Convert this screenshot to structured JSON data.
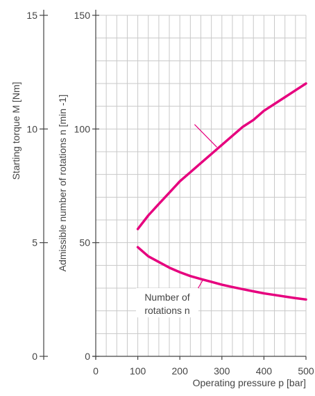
{
  "chart_data": {
    "type": "line",
    "title": "",
    "xlabel": "Operating pressure p [bar]",
    "ylabel": "Admissible number of rotations n [min -1]",
    "y2label": "Starting torque M [Nm]",
    "xlim": [
      0,
      500
    ],
    "ylim": [
      0,
      150
    ],
    "y2lim": [
      0,
      15
    ],
    "x_ticks": [
      "0",
      "100",
      "200",
      "300",
      "400",
      "500"
    ],
    "y_ticks": [
      "0",
      "50",
      "100",
      "150"
    ],
    "y2_ticks": [
      "0",
      "5",
      "10",
      "15"
    ],
    "grid": true,
    "annotations": [
      {
        "lines": [
          "Number of",
          "rotations n"
        ]
      }
    ],
    "colors": {
      "series": "#e6007e",
      "grid": "#c8c8c8",
      "axis": "#444444"
    },
    "series": [
      {
        "x": [
          100,
          125,
          150,
          175,
          200,
          225,
          250,
          275,
          300,
          325,
          350,
          375,
          400,
          425,
          450,
          475,
          500
        ],
        "y": [
          56,
          62,
          67,
          72,
          77,
          81,
          85,
          89,
          93,
          97,
          101,
          104,
          108,
          111,
          114,
          117,
          120
        ]
      },
      {
        "x": [
          100,
          125,
          150,
          175,
          200,
          225,
          250,
          275,
          300,
          325,
          350,
          375,
          400,
          425,
          450,
          475,
          500
        ],
        "y": [
          48,
          44,
          41.5,
          39,
          37,
          35.3,
          34,
          32.8,
          31.5,
          30.5,
          29.5,
          28.6,
          27.7,
          27,
          26.3,
          25.6,
          25
        ]
      }
    ]
  }
}
